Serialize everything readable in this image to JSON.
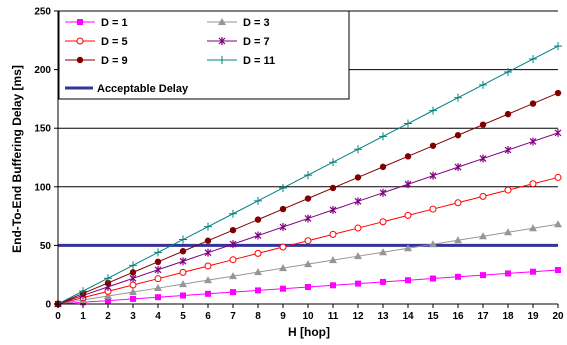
{
  "chart_data": {
    "type": "line",
    "xlabel": "H [hop]",
    "ylabel": "End-To-End Buffering Delay [ms]",
    "xlim": [
      0,
      20
    ],
    "ylim": [
      0,
      250
    ],
    "x_ticks": [
      0,
      1,
      2,
      3,
      4,
      5,
      6,
      7,
      8,
      9,
      10,
      11,
      12,
      13,
      14,
      15,
      16,
      17,
      18,
      19,
      20
    ],
    "y_ticks": [
      0,
      50,
      100,
      150,
      200,
      250
    ],
    "grid": "horizontal",
    "legend_position": "top-left",
    "x": [
      0,
      1,
      2,
      3,
      4,
      5,
      6,
      7,
      8,
      9,
      10,
      11,
      12,
      13,
      14,
      15,
      16,
      17,
      18,
      19,
      20
    ],
    "series": [
      {
        "name": "D = 1",
        "color": "#ff00ff",
        "marker": "square",
        "values": [
          0,
          1.45,
          2.9,
          4.35,
          5.8,
          7.25,
          8.7,
          10.15,
          11.6,
          13.05,
          14.5,
          15.95,
          17.4,
          18.85,
          20.3,
          21.75,
          23.2,
          24.65,
          26.1,
          27.55,
          29
        ]
      },
      {
        "name": "D = 3",
        "color": "#969696",
        "marker": "triangle",
        "values": [
          0,
          3.4,
          6.8,
          10.2,
          13.6,
          17,
          20.4,
          23.8,
          27.2,
          30.6,
          34,
          37.4,
          40.8,
          44.2,
          47.6,
          51,
          54.4,
          57.8,
          61.2,
          64.6,
          68
        ]
      },
      {
        "name": "D = 5",
        "color": "#ff0000",
        "marker": "circle-open",
        "values": [
          0,
          5.4,
          10.8,
          16.2,
          21.6,
          27,
          32.4,
          37.8,
          43.2,
          48.6,
          54,
          59.4,
          64.8,
          70.2,
          75.6,
          81,
          86.4,
          91.8,
          97.2,
          102.6,
          108
        ]
      },
      {
        "name": "D = 7",
        "color": "#800080",
        "marker": "star",
        "values": [
          0,
          7.3,
          14.6,
          21.9,
          29.2,
          36.5,
          43.8,
          51.1,
          58.4,
          65.7,
          73,
          80.3,
          87.6,
          94.9,
          102.2,
          109.5,
          116.8,
          124.1,
          131.4,
          138.7,
          146
        ]
      },
      {
        "name": "D = 9",
        "color": "#800000",
        "marker": "circle-filled",
        "values": [
          0,
          9,
          18,
          27,
          36,
          45,
          54,
          63,
          72,
          81,
          90,
          99,
          108,
          117,
          126,
          135,
          144,
          153,
          162,
          171,
          180
        ]
      },
      {
        "name": "D = 11",
        "color": "#008080",
        "marker": "plus",
        "values": [
          0,
          11,
          22,
          33,
          44,
          55,
          66,
          77,
          88,
          99,
          110,
          121,
          132,
          143,
          154,
          165,
          176,
          187,
          198,
          209,
          220
        ]
      }
    ],
    "reference_line": {
      "name": "Acceptable Delay",
      "y": 50,
      "color": "#333399"
    }
  }
}
